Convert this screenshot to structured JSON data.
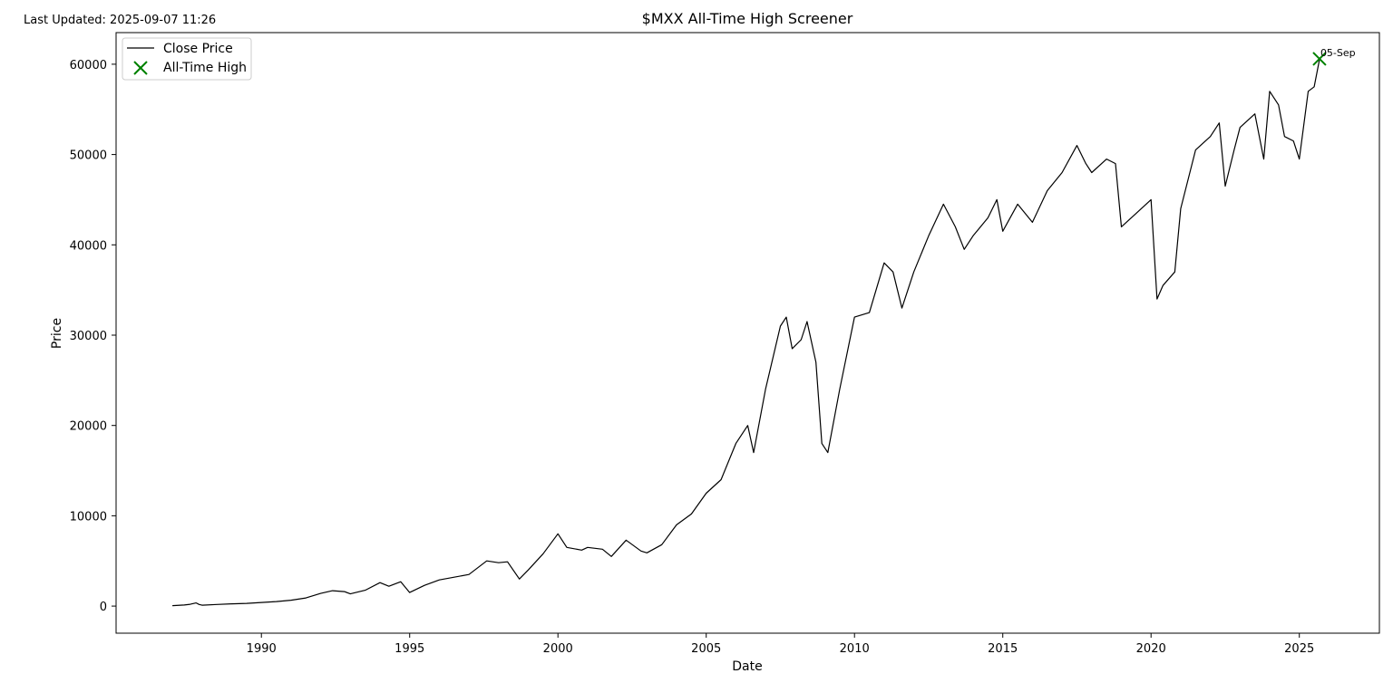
{
  "header": {
    "last_updated": "Last Updated: 2025-09-07 11:26"
  },
  "chart_data": {
    "type": "line",
    "title": "$MXX All-Time High Screener",
    "xlabel": "Date",
    "ylabel": "Price",
    "xlim": [
      1985.1,
      2027.7
    ],
    "ylim": [
      -3000,
      63500
    ],
    "x_ticks": [
      1990,
      1995,
      2000,
      2005,
      2010,
      2015,
      2020,
      2025
    ],
    "y_ticks": [
      0,
      10000,
      20000,
      30000,
      40000,
      50000,
      60000
    ],
    "grid": false,
    "legend": {
      "location": "upper-left",
      "entries": [
        {
          "label": "Close Price",
          "marker": "line",
          "color": "#000000"
        },
        {
          "label": "All-Time High",
          "marker": "x",
          "color": "#008000"
        }
      ]
    },
    "series": [
      {
        "name": "Close Price",
        "color": "#000000",
        "points": [
          [
            1987.0,
            50
          ],
          [
            1987.4,
            120
          ],
          [
            1987.6,
            200
          ],
          [
            1987.8,
            350
          ],
          [
            1987.9,
            180
          ],
          [
            1988.0,
            100
          ],
          [
            1988.5,
            180
          ],
          [
            1989.0,
            250
          ],
          [
            1989.5,
            300
          ],
          [
            1990.0,
            400
          ],
          [
            1990.5,
            500
          ],
          [
            1991.0,
            650
          ],
          [
            1991.5,
            900
          ],
          [
            1992.0,
            1400
          ],
          [
            1992.4,
            1700
          ],
          [
            1992.8,
            1600
          ],
          [
            1993.0,
            1350
          ],
          [
            1993.5,
            1750
          ],
          [
            1994.0,
            2600
          ],
          [
            1994.3,
            2200
          ],
          [
            1994.7,
            2700
          ],
          [
            1995.0,
            1500
          ],
          [
            1995.5,
            2300
          ],
          [
            1996.0,
            2900
          ],
          [
            1996.5,
            3200
          ],
          [
            1997.0,
            3500
          ],
          [
            1997.6,
            5000
          ],
          [
            1998.0,
            4800
          ],
          [
            1998.3,
            4900
          ],
          [
            1998.7,
            3000
          ],
          [
            1999.0,
            4000
          ],
          [
            1999.5,
            5800
          ],
          [
            2000.0,
            8000
          ],
          [
            2000.3,
            6500
          ],
          [
            2000.8,
            6200
          ],
          [
            2001.0,
            6500
          ],
          [
            2001.5,
            6300
          ],
          [
            2001.8,
            5500
          ],
          [
            2002.3,
            7300
          ],
          [
            2002.8,
            6100
          ],
          [
            2003.0,
            5900
          ],
          [
            2003.5,
            6800
          ],
          [
            2004.0,
            9000
          ],
          [
            2004.5,
            10200
          ],
          [
            2005.0,
            12500
          ],
          [
            2005.5,
            14000
          ],
          [
            2006.0,
            18000
          ],
          [
            2006.4,
            20000
          ],
          [
            2006.6,
            17000
          ],
          [
            2007.0,
            24000
          ],
          [
            2007.5,
            31000
          ],
          [
            2007.7,
            32000
          ],
          [
            2007.9,
            28500
          ],
          [
            2008.2,
            29500
          ],
          [
            2008.4,
            31500
          ],
          [
            2008.7,
            27000
          ],
          [
            2008.9,
            18000
          ],
          [
            2009.1,
            17000
          ],
          [
            2009.5,
            24000
          ],
          [
            2010.0,
            32000
          ],
          [
            2010.5,
            32500
          ],
          [
            2011.0,
            38000
          ],
          [
            2011.3,
            37000
          ],
          [
            2011.6,
            33000
          ],
          [
            2012.0,
            37000
          ],
          [
            2012.5,
            41000
          ],
          [
            2013.0,
            44500
          ],
          [
            2013.4,
            42000
          ],
          [
            2013.7,
            39500
          ],
          [
            2014.0,
            41000
          ],
          [
            2014.5,
            43000
          ],
          [
            2014.8,
            45000
          ],
          [
            2015.0,
            41500
          ],
          [
            2015.5,
            44500
          ],
          [
            2016.0,
            42500
          ],
          [
            2016.5,
            46000
          ],
          [
            2017.0,
            48000
          ],
          [
            2017.5,
            51000
          ],
          [
            2017.8,
            49000
          ],
          [
            2018.0,
            48000
          ],
          [
            2018.5,
            49500
          ],
          [
            2018.8,
            49000
          ],
          [
            2019.0,
            42000
          ],
          [
            2019.5,
            43500
          ],
          [
            2020.0,
            45000
          ],
          [
            2020.2,
            34000
          ],
          [
            2020.4,
            35500
          ],
          [
            2020.8,
            37000
          ],
          [
            2021.0,
            44000
          ],
          [
            2021.5,
            50500
          ],
          [
            2022.0,
            52000
          ],
          [
            2022.3,
            53500
          ],
          [
            2022.5,
            46500
          ],
          [
            2022.8,
            50500
          ],
          [
            2023.0,
            53000
          ],
          [
            2023.5,
            54500
          ],
          [
            2023.8,
            49500
          ],
          [
            2024.0,
            57000
          ],
          [
            2024.3,
            55500
          ],
          [
            2024.5,
            52000
          ],
          [
            2024.8,
            51500
          ],
          [
            2025.0,
            49500
          ],
          [
            2025.3,
            57000
          ],
          [
            2025.5,
            57500
          ],
          [
            2025.68,
            60500
          ]
        ]
      }
    ],
    "all_time_high": {
      "x": 2025.68,
      "y": 60600,
      "label": "05-Sep",
      "color": "#008000"
    }
  }
}
